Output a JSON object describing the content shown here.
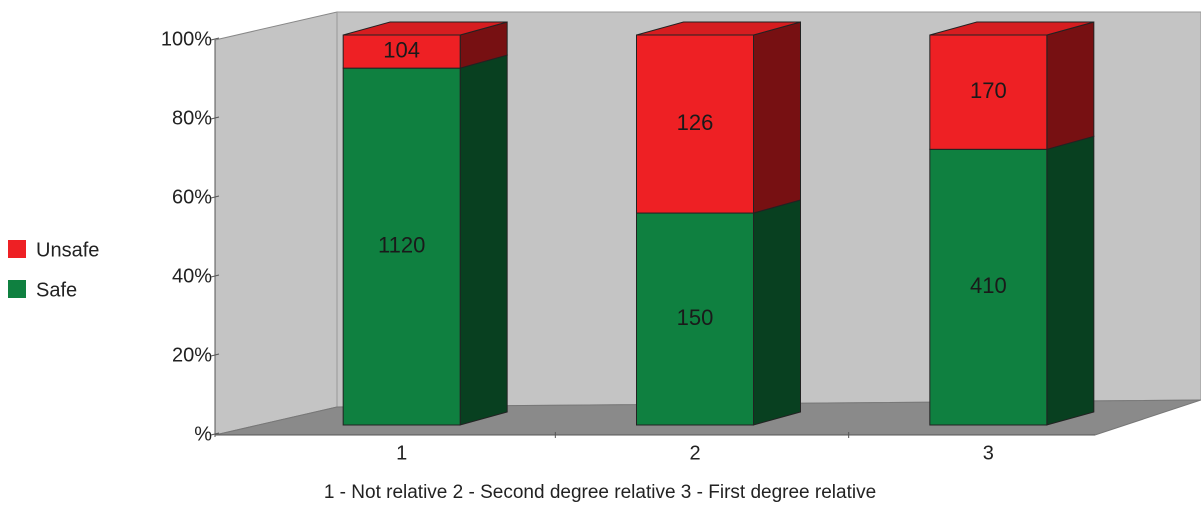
{
  "chart_data": {
    "type": "bar",
    "stacking": "percent",
    "categories": [
      "1",
      "2",
      "3"
    ],
    "series": [
      {
        "name": "Safe",
        "color": "#0f8040",
        "values": [
          1120,
          150,
          410
        ]
      },
      {
        "name": "Unsafe",
        "color": "#ee2024",
        "values": [
          104,
          126,
          170
        ]
      }
    ],
    "ylim": [
      0,
      100
    ],
    "yticks": [
      {
        "value": 0,
        "label": "%"
      },
      {
        "value": 20,
        "label": "20%"
      },
      {
        "value": 40,
        "label": "40%"
      },
      {
        "value": 60,
        "label": "60%"
      },
      {
        "value": 80,
        "label": "80%"
      },
      {
        "value": 100,
        "label": "100%"
      }
    ],
    "x_note": "1 - Not relative  2 - Second degree relative  3 - First degree relative",
    "legend": "left"
  }
}
